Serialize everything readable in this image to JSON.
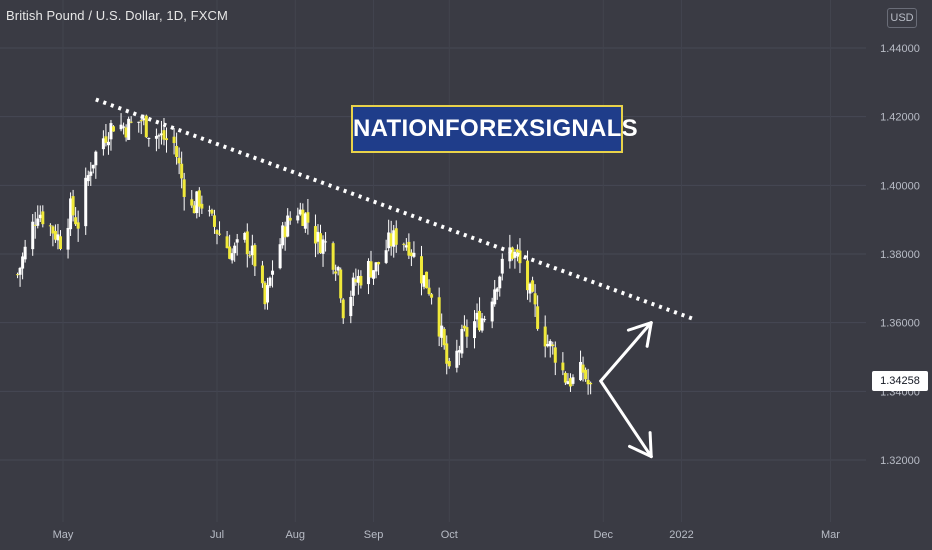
{
  "header": {
    "title": "British Pound / U.S. Dollar, 1D, FXCM",
    "currency_button": "USD"
  },
  "watermark": {
    "text": "NATIONFOREXSIGNALS"
  },
  "current_price": "1.34258",
  "colors": {
    "background": "#3a3b44",
    "candle": "#f0e93a",
    "wick": "#ffffff",
    "trendline": "#ffffff",
    "badge_bg": "#1f3d8a",
    "badge_border": "#e8d24a"
  },
  "chart_data": {
    "type": "candlestick",
    "symbol": "British Pound / U.S. Dollar",
    "interval": "1D",
    "source": "FXCM",
    "ylim": [
      1.312,
      1.448
    ],
    "y_ticks": [
      "1.44000",
      "1.42000",
      "1.40000",
      "1.38000",
      "1.36000",
      "1.34000",
      "1.32000"
    ],
    "y_tick_values": [
      1.44,
      1.42,
      1.4,
      1.38,
      1.36,
      1.34,
      1.32
    ],
    "x_ticks": [
      "May",
      "Jul",
      "Aug",
      "Sep",
      "Oct",
      "Dec",
      "2022",
      "Mar"
    ],
    "x_tick_dates": [
      "2021-05-01",
      "2021-07-01",
      "2021-08-01",
      "2021-09-01",
      "2021-10-01",
      "2021-12-01",
      "2022-01-01",
      "2022-03-01"
    ],
    "last_price": 1.34258,
    "closes": [
      {
        "date": "2021-04-13",
        "close": 1.374
      },
      {
        "date": "2021-04-16",
        "close": 1.381
      },
      {
        "date": "2021-04-21",
        "close": 1.393
      },
      {
        "date": "2021-04-26",
        "close": 1.388
      },
      {
        "date": "2021-04-30",
        "close": 1.384
      },
      {
        "date": "2021-05-04",
        "close": 1.393
      },
      {
        "date": "2021-05-07",
        "close": 1.389
      },
      {
        "date": "2021-05-12",
        "close": 1.406
      },
      {
        "date": "2021-05-17",
        "close": 1.414
      },
      {
        "date": "2021-05-21",
        "close": 1.418
      },
      {
        "date": "2021-05-26",
        "close": 1.417
      },
      {
        "date": "2021-06-01",
        "close": 1.419
      },
      {
        "date": "2021-06-04",
        "close": 1.416
      },
      {
        "date": "2021-06-09",
        "close": 1.414
      },
      {
        "date": "2021-06-14",
        "close": 1.412
      },
      {
        "date": "2021-06-17",
        "close": 1.402
      },
      {
        "date": "2021-06-21",
        "close": 1.393
      },
      {
        "date": "2021-06-24",
        "close": 1.396
      },
      {
        "date": "2021-06-29",
        "close": 1.389
      },
      {
        "date": "2021-07-02",
        "close": 1.386
      },
      {
        "date": "2021-07-07",
        "close": 1.38
      },
      {
        "date": "2021-07-12",
        "close": 1.384
      },
      {
        "date": "2021-07-16",
        "close": 1.378
      },
      {
        "date": "2021-07-20",
        "close": 1.365
      },
      {
        "date": "2021-07-23",
        "close": 1.376
      },
      {
        "date": "2021-07-28",
        "close": 1.388
      },
      {
        "date": "2021-08-02",
        "close": 1.393
      },
      {
        "date": "2021-08-05",
        "close": 1.391
      },
      {
        "date": "2021-08-10",
        "close": 1.384
      },
      {
        "date": "2021-08-13",
        "close": 1.383
      },
      {
        "date": "2021-08-18",
        "close": 1.376
      },
      {
        "date": "2021-08-20",
        "close": 1.364
      },
      {
        "date": "2021-08-25",
        "close": 1.372
      },
      {
        "date": "2021-08-30",
        "close": 1.376
      },
      {
        "date": "2021-09-02",
        "close": 1.376
      },
      {
        "date": "2021-09-07",
        "close": 1.383
      },
      {
        "date": "2021-09-10",
        "close": 1.385
      },
      {
        "date": "2021-09-15",
        "close": 1.383
      },
      {
        "date": "2021-09-20",
        "close": 1.374
      },
      {
        "date": "2021-09-24",
        "close": 1.369
      },
      {
        "date": "2021-09-28",
        "close": 1.356
      },
      {
        "date": "2021-10-01",
        "close": 1.344
      },
      {
        "date": "2021-10-06",
        "close": 1.355
      },
      {
        "date": "2021-10-11",
        "close": 1.36
      },
      {
        "date": "2021-10-15",
        "close": 1.362
      },
      {
        "date": "2021-10-20",
        "close": 1.373
      },
      {
        "date": "2021-10-25",
        "close": 1.381
      },
      {
        "date": "2021-10-28",
        "close": 1.379
      },
      {
        "date": "2021-11-02",
        "close": 1.368
      },
      {
        "date": "2021-11-05",
        "close": 1.361
      },
      {
        "date": "2021-11-09",
        "close": 1.354
      },
      {
        "date": "2021-11-12",
        "close": 1.351
      },
      {
        "date": "2021-11-16",
        "close": 1.344
      },
      {
        "date": "2021-11-19",
        "close": 1.343
      },
      {
        "date": "2021-11-23",
        "close": 1.346
      },
      {
        "date": "2021-11-26",
        "close": 1.34
      }
    ],
    "trendline": {
      "style": "dotted",
      "from": {
        "date": "2021-05-14",
        "price": 1.425
      },
      "to": {
        "date": "2022-01-06",
        "price": 1.361
      }
    },
    "projection_arrows": [
      {
        "from": {
          "date": "2021-11-30",
          "price": 1.343
        },
        "to": {
          "date": "2021-12-20",
          "price": 1.36
        }
      },
      {
        "from": {
          "date": "2021-11-30",
          "price": 1.343
        },
        "to": {
          "date": "2021-12-20",
          "price": 1.321
        }
      }
    ]
  }
}
